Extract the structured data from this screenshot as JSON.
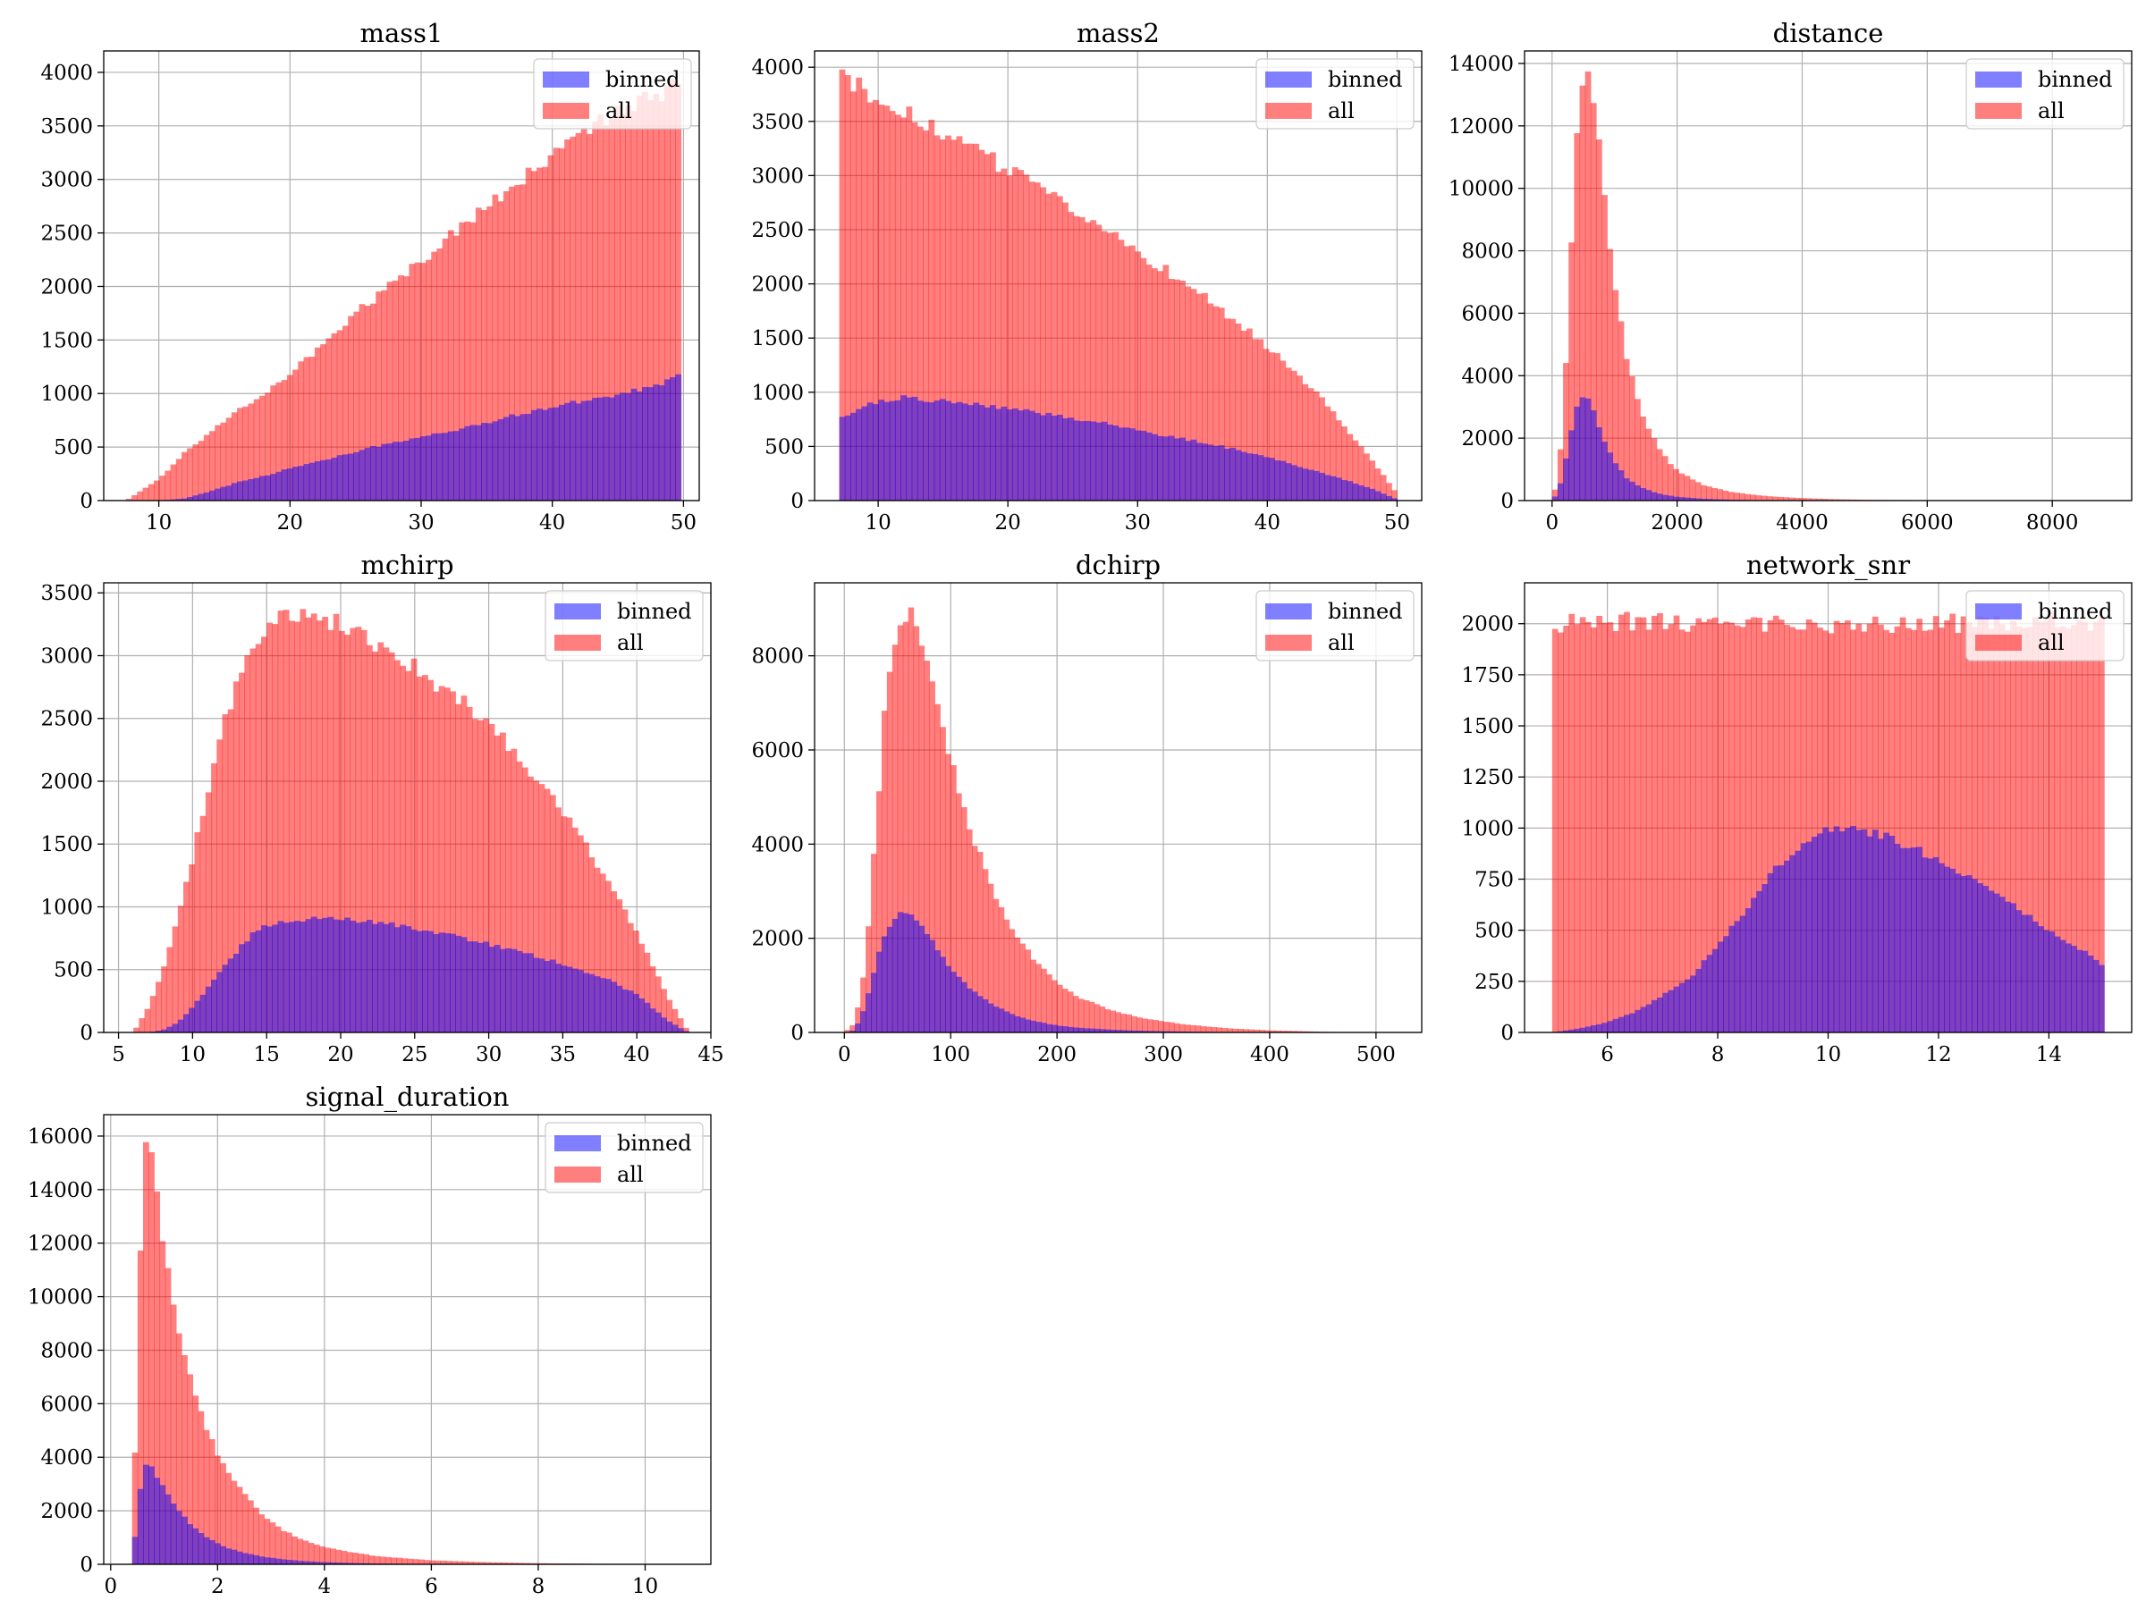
{
  "legend_labels": {
    "binned": "binned",
    "all": "all"
  },
  "colors": {
    "binned": "#0000ff",
    "all": "#ff0000",
    "bar_alpha": 0.5,
    "grid": "#b0b0b0"
  },
  "chart_data": [
    {
      "type": "bar",
      "title": "mass1",
      "legend_position": "upper-right",
      "grid": true,
      "x": [
        7.5,
        10,
        12,
        14,
        16,
        18,
        20,
        22,
        24,
        26,
        28,
        30,
        32,
        34,
        36,
        38,
        40,
        42,
        44,
        46,
        48,
        49.8
      ],
      "xlim": [
        5.8,
        51.2
      ],
      "ylim": [
        0,
        4200
      ],
      "xticks": [
        10,
        20,
        30,
        40,
        50
      ],
      "yticks": [
        0,
        500,
        1000,
        1500,
        2000,
        2500,
        3000,
        3500,
        4000
      ],
      "series": [
        {
          "name": "all",
          "values": [
            0,
            200,
            450,
            650,
            850,
            1000,
            1180,
            1400,
            1650,
            1850,
            2050,
            2250,
            2450,
            2650,
            2850,
            3050,
            3250,
            3400,
            3550,
            3650,
            3800,
            3900
          ]
        },
        {
          "name": "binned",
          "values": [
            0,
            0,
            20,
            90,
            170,
            230,
            300,
            360,
            430,
            490,
            540,
            600,
            650,
            700,
            760,
            820,
            880,
            920,
            970,
            1020,
            1080,
            1180
          ]
        }
      ]
    },
    {
      "type": "bar",
      "title": "mass2",
      "legend_position": "upper-right",
      "grid": true,
      "x": [
        7,
        8,
        10,
        12,
        14,
        16,
        18,
        20,
        22,
        24,
        26,
        28,
        30,
        32,
        34,
        36,
        38,
        40,
        42,
        44,
        46,
        48,
        50
      ],
      "xlim": [
        5.1,
        51.9
      ],
      "ylim": [
        0,
        4150
      ],
      "xticks": [
        10,
        20,
        30,
        40,
        50
      ],
      "yticks": [
        0,
        500,
        1000,
        1500,
        2000,
        2500,
        3000,
        3500,
        4000
      ],
      "series": [
        {
          "name": "all",
          "values": [
            3950,
            3850,
            3700,
            3580,
            3450,
            3330,
            3200,
            3050,
            2920,
            2780,
            2620,
            2470,
            2300,
            2140,
            1980,
            1800,
            1620,
            1420,
            1200,
            960,
            680,
            380,
            60
          ]
        },
        {
          "name": "binned",
          "values": [
            760,
            820,
            920,
            950,
            930,
            910,
            880,
            850,
            820,
            780,
            740,
            700,
            650,
            600,
            560,
            510,
            460,
            400,
            330,
            260,
            190,
            110,
            10
          ]
        }
      ]
    },
    {
      "type": "bar",
      "title": "distance",
      "legend_position": "upper-right",
      "grid": true,
      "x": [
        0,
        100,
        200,
        300,
        400,
        500,
        600,
        700,
        800,
        900,
        1000,
        1200,
        1400,
        1600,
        1800,
        2000,
        2400,
        2800,
        3200,
        3600,
        4000,
        4500,
        5000,
        6000,
        7000,
        8000,
        8800
      ],
      "xlim": [
        -440,
        9270
      ],
      "ylim": [
        0,
        14400
      ],
      "xticks": [
        0,
        2000,
        4000,
        6000,
        8000
      ],
      "yticks": [
        0,
        2000,
        4000,
        6000,
        8000,
        10000,
        12000,
        14000
      ],
      "series": [
        {
          "name": "all",
          "values": [
            0,
            800,
            3400,
            8000,
            12100,
            13200,
            13700,
            12300,
            10400,
            8500,
            6800,
            4500,
            3000,
            2050,
            1400,
            950,
            500,
            300,
            190,
            120,
            80,
            45,
            25,
            10,
            5,
            0,
            0
          ]
        },
        {
          "name": "binned",
          "values": [
            0,
            300,
            1100,
            2200,
            3000,
            3300,
            3200,
            2600,
            2100,
            1600,
            1200,
            700,
            450,
            280,
            180,
            120,
            60,
            30,
            15,
            8,
            5,
            2,
            0,
            0,
            0,
            0,
            0
          ]
        }
      ]
    },
    {
      "type": "bar",
      "title": "mchirp",
      "legend_position": "upper-right",
      "grid": true,
      "x": [
        6,
        7,
        8,
        9,
        10,
        11,
        12,
        13,
        14,
        15,
        16,
        17,
        18,
        19,
        20,
        22,
        24,
        26,
        28,
        30,
        32,
        34,
        36,
        38,
        40,
        41,
        42,
        43,
        43.5
      ],
      "xlim": [
        4,
        45
      ],
      "ylim": [
        0,
        3580
      ],
      "xticks": [
        5,
        10,
        15,
        20,
        25,
        30,
        35,
        40,
        45
      ],
      "yticks": [
        0,
        500,
        1000,
        1500,
        2000,
        2500,
        3000,
        3500
      ],
      "series": [
        {
          "name": "all",
          "values": [
            0,
            200,
            500,
            900,
            1400,
            1900,
            2400,
            2800,
            3100,
            3250,
            3300,
            3320,
            3310,
            3290,
            3250,
            3120,
            2980,
            2820,
            2650,
            2450,
            2200,
            1900,
            1600,
            1200,
            800,
            550,
            300,
            100,
            0
          ]
        },
        {
          "name": "binned",
          "values": [
            0,
            0,
            20,
            80,
            200,
            350,
            500,
            650,
            780,
            850,
            880,
            900,
            910,
            910,
            900,
            880,
            850,
            800,
            760,
            700,
            650,
            580,
            500,
            420,
            300,
            200,
            100,
            30,
            0
          ]
        }
      ]
    },
    {
      "type": "bar",
      "title": "dchirp",
      "legend_position": "upper-right",
      "grid": true,
      "x": [
        0,
        10,
        20,
        30,
        40,
        50,
        60,
        70,
        80,
        90,
        100,
        120,
        140,
        160,
        180,
        200,
        220,
        250,
        280,
        320,
        360,
        400,
        450,
        500
      ],
      "xlim": [
        -28,
        543
      ],
      "ylim": [
        0,
        9550
      ],
      "xticks": [
        0,
        100,
        200,
        300,
        400,
        500
      ],
      "yticks": [
        0,
        2000,
        4000,
        6000,
        8000
      ],
      "series": [
        {
          "name": "all",
          "values": [
            0,
            200,
            1500,
            4500,
            7500,
            8700,
            9000,
            8600,
            7800,
            6800,
            5800,
            4200,
            3000,
            2100,
            1500,
            1050,
            750,
            480,
            300,
            170,
            90,
            45,
            15,
            0
          ]
        },
        {
          "name": "binned",
          "values": [
            0,
            50,
            600,
            1500,
            2200,
            2500,
            2500,
            2300,
            2000,
            1700,
            1350,
            900,
            580,
            360,
            230,
            150,
            100,
            60,
            35,
            18,
            8,
            4,
            0,
            0
          ]
        }
      ]
    },
    {
      "type": "bar",
      "title": "network_snr",
      "legend_position": "upper-right",
      "grid": true,
      "x": [
        5,
        5.5,
        6,
        6.5,
        7,
        7.5,
        8,
        8.5,
        9,
        9.5,
        10,
        10.5,
        11,
        11.5,
        12,
        12.5,
        13,
        13.5,
        14,
        14.5,
        15
      ],
      "xlim": [
        4.5,
        15.5
      ],
      "ylim": [
        0,
        2200
      ],
      "xticks": [
        6,
        8,
        10,
        12,
        14
      ],
      "yticks": [
        0,
        250,
        500,
        750,
        1000,
        1250,
        1500,
        1750,
        2000
      ],
      "series": [
        {
          "name": "all",
          "values": [
            1990,
            2010,
            1980,
            2020,
            2000,
            1990,
            2010,
            1980,
            2020,
            1990,
            2000,
            2010,
            1990,
            2000,
            2010,
            1990,
            2000,
            1980,
            2010,
            1990,
            2000
          ]
        },
        {
          "name": "binned",
          "values": [
            0,
            20,
            50,
            100,
            180,
            270,
            420,
            600,
            800,
            920,
            1000,
            990,
            960,
            910,
            840,
            760,
            680,
            600,
            500,
            420,
            320
          ]
        }
      ]
    },
    {
      "type": "bar",
      "title": "signal_duration",
      "legend_position": "upper-right",
      "grid": true,
      "x": [
        0.4,
        0.5,
        0.6,
        0.7,
        0.8,
        0.9,
        1,
        1.2,
        1.4,
        1.6,
        1.8,
        2,
        2.2,
        2.5,
        2.8,
        3.2,
        3.6,
        4,
        4.5,
        5,
        6,
        7,
        8,
        9,
        10,
        10.7
      ],
      "xlim": [
        -0.13,
        11.23
      ],
      "ylim": [
        0,
        16800
      ],
      "xticks": [
        0,
        2,
        4,
        6,
        8,
        10
      ],
      "yticks": [
        0,
        2000,
        4000,
        6000,
        8000,
        10000,
        12000,
        14000,
        16000
      ],
      "series": [
        {
          "name": "all",
          "values": [
            0,
            8200,
            15000,
            15900,
            15200,
            13500,
            11800,
            9500,
            7700,
            6200,
            5000,
            4100,
            3400,
            2600,
            1900,
            1300,
            900,
            650,
            450,
            300,
            150,
            80,
            40,
            20,
            10,
            0
          ]
        },
        {
          "name": "binned",
          "values": [
            0,
            2000,
            3600,
            3700,
            3500,
            3200,
            2800,
            2200,
            1700,
            1300,
            1000,
            780,
            600,
            430,
            300,
            190,
            120,
            80,
            50,
            30,
            10,
            5,
            2,
            0,
            0,
            0
          ]
        }
      ]
    }
  ]
}
